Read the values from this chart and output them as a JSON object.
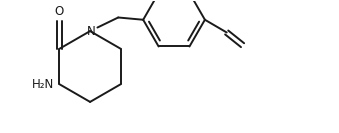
{
  "bg_color": "#ffffff",
  "line_color": "#1a1a1a",
  "line_width": 1.4,
  "font_size": 8.5,
  "atoms": {
    "N_label": "N",
    "O_label": "O",
    "NH2_label": "H₂N"
  },
  "xlim": [
    0.0,
    7.2
  ],
  "ylim": [
    0.3,
    3.2
  ]
}
